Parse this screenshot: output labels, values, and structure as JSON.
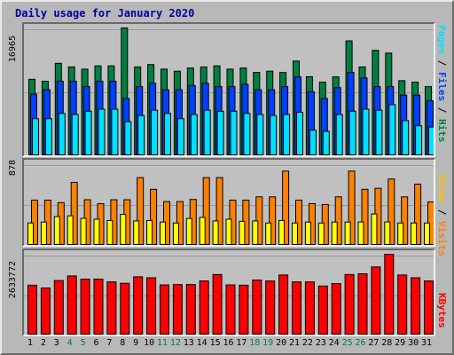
{
  "title": "Daily usage for January 2020",
  "colors": {
    "hits": "#008040",
    "files": "#0040ff",
    "pages": "#00e0ff",
    "visits": "#ff8000",
    "sites": "#ffff00",
    "kbytes": "#ff0000",
    "weekend": "#008040",
    "weekday": "#000000"
  },
  "labels": {
    "top": {
      "pages": "Pages",
      "files": "Files",
      "hits": "Hits",
      "sep": " / "
    },
    "mid": {
      "sites": "Sites",
      "visits": "Visits",
      "sep": " / "
    },
    "bot": {
      "kbytes": "KBytes"
    }
  },
  "scales": {
    "top_max_label": "16965",
    "mid_max_label": "878",
    "bot_max_label": "2633772",
    "top_max": 16965,
    "mid_max": 878,
    "bot_max": 2633772
  },
  "chart_data": {
    "type": "bar",
    "categories": [
      "1",
      "2",
      "3",
      "4",
      "5",
      "6",
      "7",
      "8",
      "9",
      "10",
      "11",
      "12",
      "13",
      "14",
      "15",
      "16",
      "17",
      "18",
      "19",
      "20",
      "21",
      "22",
      "23",
      "24",
      "25",
      "26",
      "27",
      "28",
      "29",
      "30",
      "31"
    ],
    "weekend_days": [
      "4",
      "5",
      "11",
      "12",
      "18",
      "19",
      "25",
      "26"
    ],
    "series": [
      {
        "name": "Hits",
        "values": [
          10150,
          9890,
          12270,
          11790,
          11500,
          11930,
          11930,
          16965,
          11790,
          12110,
          11500,
          11230,
          11650,
          11790,
          11930,
          11500,
          11650,
          11070,
          11230,
          11050,
          12570,
          10490,
          9770,
          10470,
          15250,
          11790,
          13990,
          13630,
          9970,
          9770,
          9180
        ]
      },
      {
        "name": "Files",
        "values": [
          8190,
          8760,
          9900,
          9900,
          9190,
          9900,
          9900,
          7600,
          9190,
          9620,
          8760,
          8760,
          9330,
          9620,
          9190,
          9190,
          9480,
          8760,
          8760,
          9190,
          10470,
          8500,
          7600,
          9050,
          11060,
          10330,
          9190,
          9190,
          8050,
          8050,
          7300
        ]
      },
      {
        "name": "Pages",
        "values": [
          4920,
          4920,
          5620,
          5480,
          5910,
          6190,
          6190,
          4520,
          5340,
          6050,
          5620,
          4920,
          5480,
          6050,
          5910,
          5910,
          5620,
          5480,
          5340,
          5480,
          5780,
          3400,
          3250,
          5480,
          5910,
          6190,
          6050,
          6790,
          4660,
          3980,
          3820
        ]
      },
      {
        "name": "Visits",
        "values": [
          487,
          487,
          460,
          678,
          491,
          448,
          491,
          491,
          729,
          603,
          471,
          471,
          494,
          729,
          729,
          487,
          487,
          522,
          522,
          799,
          487,
          449,
          440,
          522,
          799,
          603,
          614,
          714,
          522,
          659,
          467
        ]
      },
      {
        "name": "Sites",
        "values": [
          241,
          251,
          310,
          318,
          291,
          282,
          268,
          333,
          263,
          268,
          251,
          241,
          290,
          301,
          263,
          282,
          259,
          263,
          241,
          268,
          241,
          251,
          241,
          251,
          251,
          252,
          338,
          252,
          241,
          241,
          241
        ]
      },
      {
        "name": "KBytes",
        "values": [
          1625000,
          1535000,
          1778000,
          1928000,
          1823000,
          1823000,
          1733000,
          1688000,
          1898000,
          1868000,
          1635000,
          1645000,
          1648000,
          1763000,
          1973000,
          1635000,
          1625000,
          1793000,
          1763000,
          1958000,
          1733000,
          1733000,
          1598000,
          1678000,
          1973000,
          1998000,
          2221000,
          2633772,
          1958000,
          1868000,
          1763000
        ]
      }
    ],
    "grid": true
  }
}
